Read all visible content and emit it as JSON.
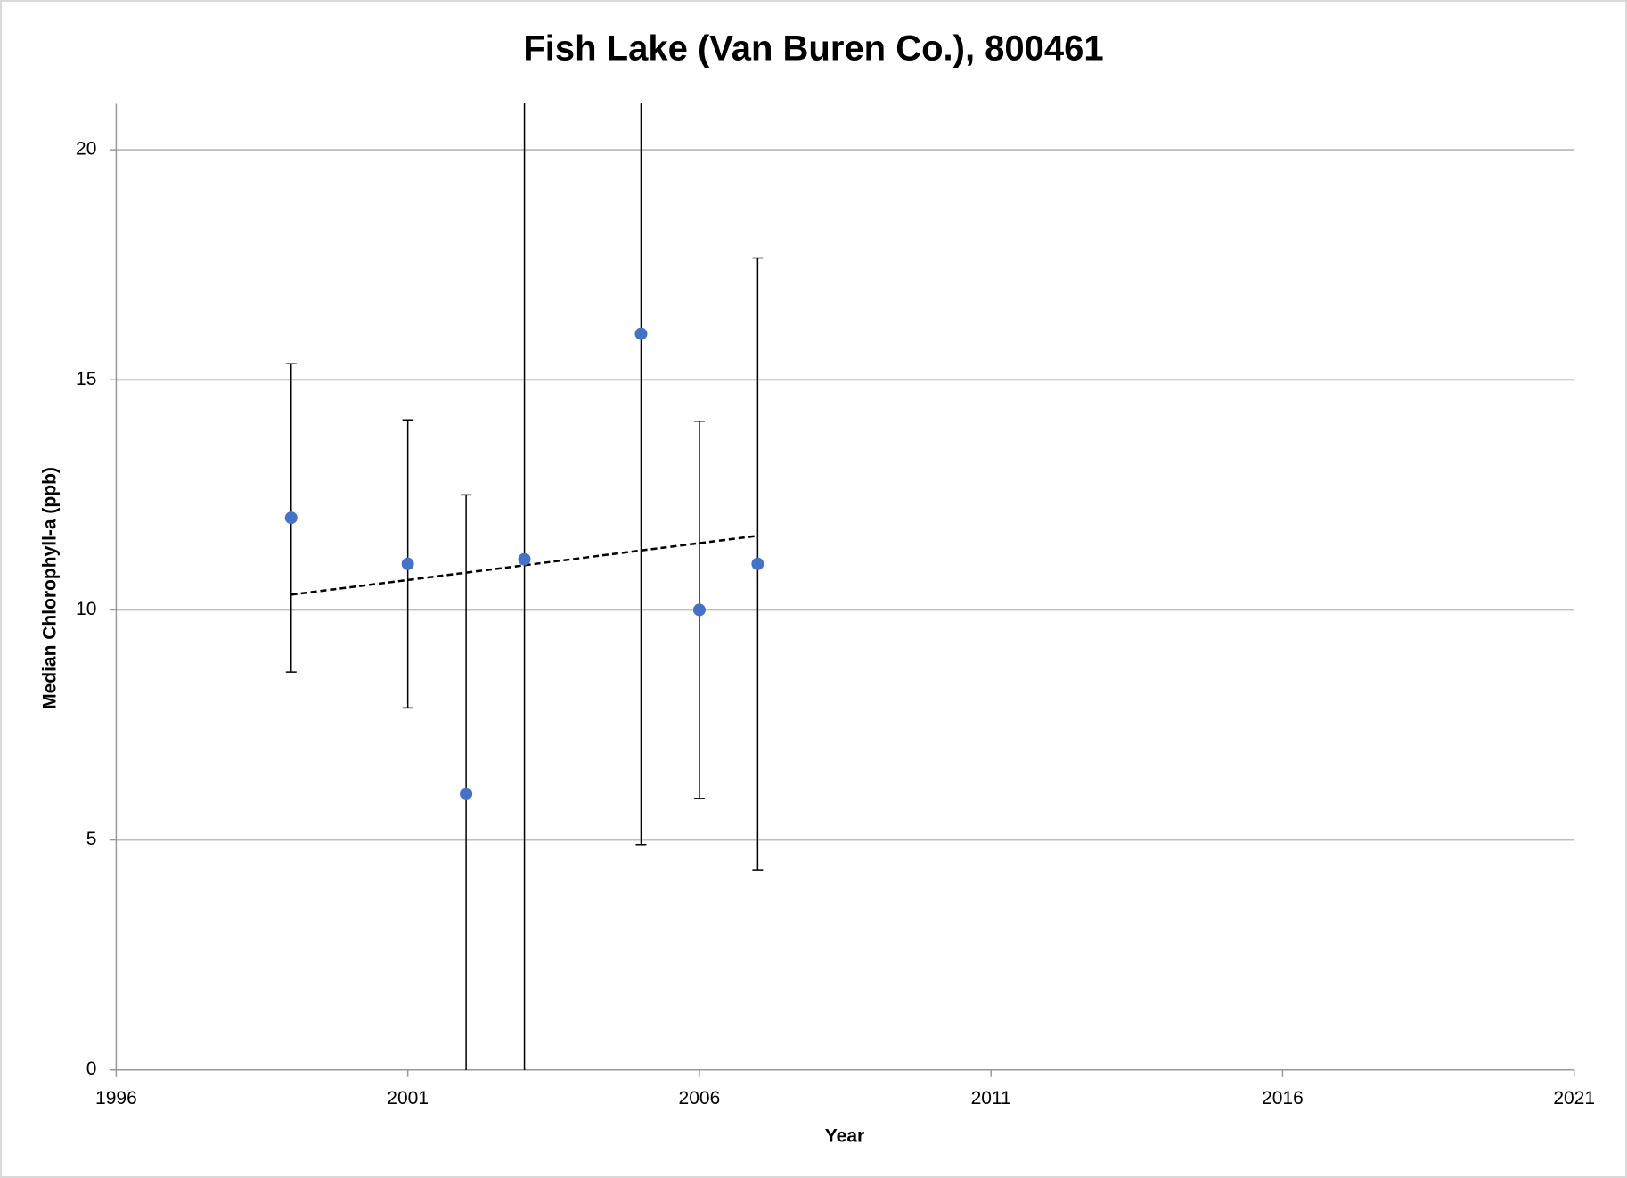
{
  "chart_data": {
    "type": "scatter",
    "title": "Fish Lake (Van Buren Co.), 800461",
    "x_label": "Year",
    "y_label": "Median Chlorophyll-a (ppb)",
    "series": [
      {
        "color": "#4472c4",
        "x": [
          1999,
          2001,
          2002,
          2003,
          2005,
          2006,
          2007
        ],
        "values": [
          12,
          11,
          6,
          11.1,
          16,
          10,
          11
        ],
        "errors": [
          3.35,
          3.13,
          6.5,
          12,
          11.1,
          4.1,
          6.65
        ]
      }
    ],
    "trendline": {
      "x": [
        1999,
        2007
      ],
      "values": [
        10.33,
        11.61
      ],
      "color": "#000000"
    },
    "xlim": [
      1996,
      2021
    ],
    "xticks": [
      1996,
      2001,
      2006,
      2011,
      2016,
      2021
    ],
    "ylim": [
      0,
      21
    ],
    "yticks": [
      0,
      5,
      10,
      15,
      20
    ],
    "grid": true
  }
}
